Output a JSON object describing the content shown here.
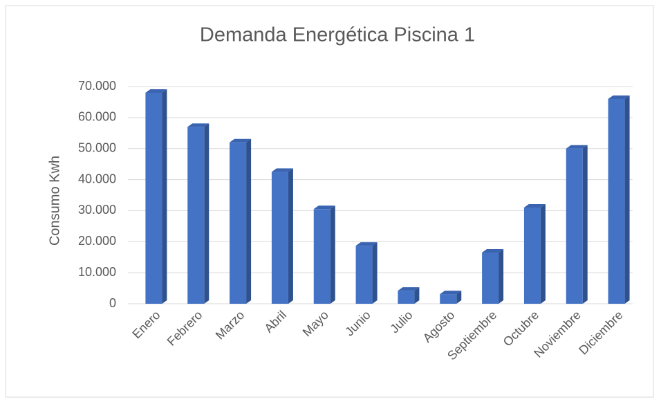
{
  "chart_data": {
    "type": "bar3d",
    "title": "Demanda Energética Piscina 1",
    "y_label": "Consumo  Kwh",
    "categories": [
      "Enero",
      "Febrero",
      "Marzo",
      "Abril",
      "Mayo",
      "Junio",
      "Julio",
      "Agosto",
      "Septiembre",
      "Octubre",
      "Noviembre",
      "Diciembre"
    ],
    "values": [
      68000,
      57000,
      52000,
      42500,
      30500,
      18700,
      4200,
      3100,
      16500,
      31000,
      50000,
      66000
    ],
    "color": "#4472c4",
    "ylim": [
      0,
      70000
    ],
    "yticks": [
      0,
      {
        "value": 10000,
        "label": "10.000"
      },
      {
        "value": 20000,
        "label": "20.000"
      },
      {
        "value": 30000,
        "label": "30.000"
      },
      {
        "value": 40000,
        "label": "40.000"
      },
      {
        "value": 50000,
        "label": "50.000"
      },
      {
        "value": 60000,
        "label": "60.000"
      },
      {
        "value": 70000,
        "label": "70.000"
      }
    ],
    "grid": true
  }
}
